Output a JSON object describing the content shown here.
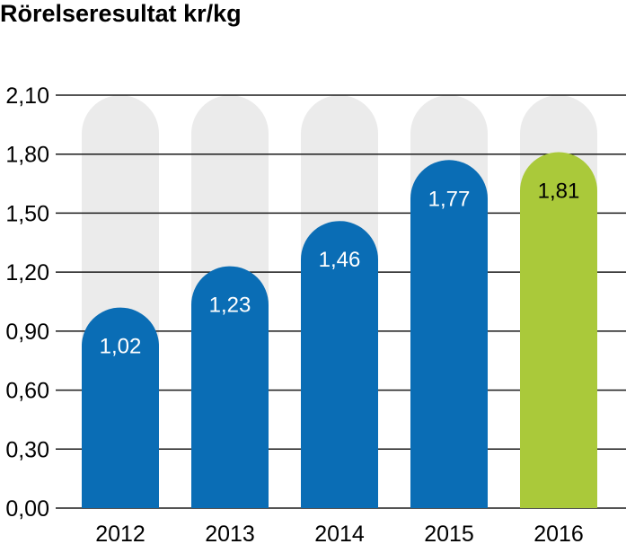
{
  "chart_data": {
    "type": "bar",
    "title": "Rörelseresultat kr/kg",
    "categories": [
      "2012",
      "2013",
      "2014",
      "2015",
      "2016"
    ],
    "values": [
      1.02,
      1.23,
      1.46,
      1.77,
      1.81
    ],
    "value_labels": [
      "1,02",
      "1,23",
      "1,46",
      "1,77",
      "1,81"
    ],
    "ylim": [
      0,
      2.1
    ],
    "y_ticks": [
      0,
      0.3,
      0.6,
      0.9,
      1.2,
      1.5,
      1.8,
      2.1
    ],
    "y_tick_labels": [
      "0,00",
      "0,30",
      "0,60",
      "0,90",
      "1,20",
      "1,50",
      "1,80",
      "2,10"
    ],
    "grid": true,
    "legend": "none",
    "colors": {
      "bar": "#0a6db5",
      "highlight_bar": "#aac93a",
      "background_bar": "#ebebeb",
      "gridline": "#1a1a1a",
      "label_on_bar": "#ffffff",
      "label_on_highlight": "#000000"
    },
    "highlight_index": 4
  }
}
